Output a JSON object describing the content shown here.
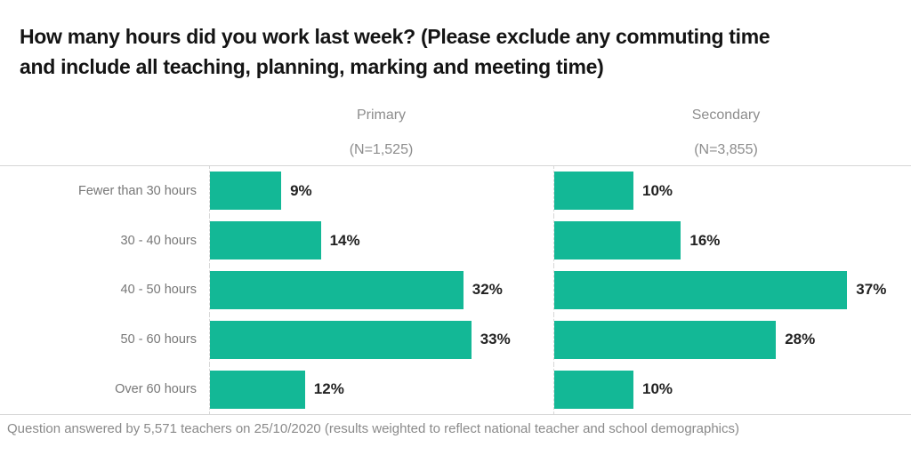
{
  "title": "How many hours did you work last week? (Please exclude any commuting time and include all teaching, planning, marking and meeting time)",
  "title_lines": [
    "How many hours did you work last week? (Please exclude any commuting time",
    "and include all teaching, planning, marking and meeting time)"
  ],
  "footnote": "Question answered by 5,571 teachers on 25/10/2020 (results weighted to reflect national teacher and school demographics)",
  "chart_data": {
    "type": "bar",
    "orientation": "horizontal",
    "title": "How many hours did you work last week? (Please exclude any commuting time and include all teaching, planning, marking and meeting time)",
    "categories": [
      "Fewer than 30 hours",
      "30 - 40 hours",
      "40 - 50 hours",
      "50 - 60 hours",
      "Over 60 hours"
    ],
    "series": [
      {
        "name": "Primary",
        "n_label": "(N=1,525)",
        "values": [
          9,
          14,
          32,
          33,
          12
        ]
      },
      {
        "name": "Secondary",
        "n_label": "(N=3,855)",
        "values": [
          10,
          16,
          37,
          28,
          10
        ]
      }
    ],
    "value_suffix": "%",
    "bar_color": "#13b896",
    "xlim": [
      0,
      40
    ],
    "grid": false,
    "legend_position": "column-headers",
    "footnote": "Question answered by 5,571 teachers on 25/10/2020 (results weighted to reflect national teacher and school demographics)"
  }
}
